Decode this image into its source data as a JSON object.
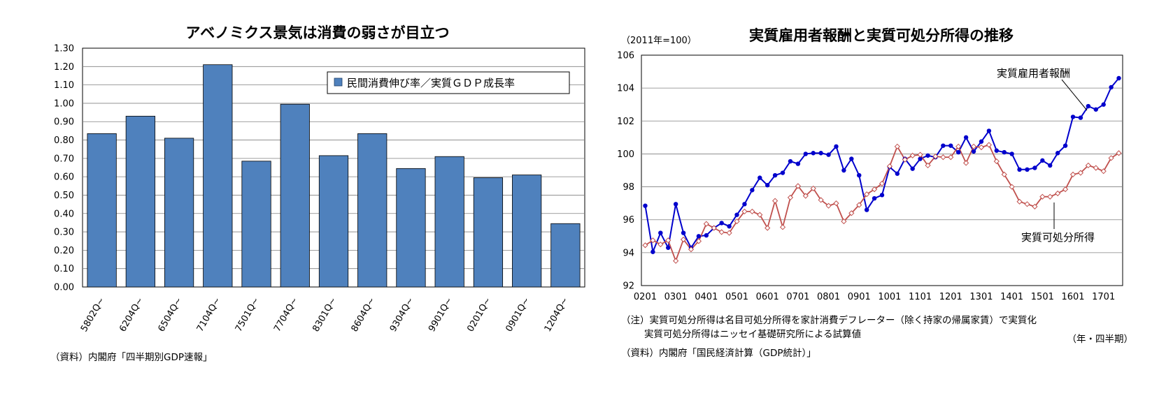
{
  "charts": [
    {
      "type": "bar",
      "title": "アベノミクス景気は消費の弱さが目立つ",
      "legend": "民間消費伸び率／実質ＧＤＰ成長率",
      "categories": [
        "5802Q~",
        "6204Q~",
        "6504Q~",
        "7104Q~",
        "7501Q~",
        "7704Q~",
        "8301Q~",
        "8604Q~",
        "9304Q~",
        "9901Q~",
        "0201Q~",
        "0901Q~",
        "1204Q~"
      ],
      "values": [
        0.835,
        0.93,
        0.81,
        1.21,
        0.685,
        0.995,
        0.715,
        0.835,
        0.645,
        0.71,
        0.595,
        0.61,
        0.345
      ],
      "ylim": [
        0,
        1.3
      ],
      "yticks": [
        "0.00",
        "0.10",
        "0.20",
        "0.30",
        "0.40",
        "0.50",
        "0.60",
        "0.70",
        "0.80",
        "0.90",
        "1.00",
        "1.10",
        "1.20",
        "1.30"
      ],
      "grid": true,
      "legend_position": "top-right",
      "bar_color": "#4f81bd",
      "source": "（資料）内閣府「四半期別GDP速報」"
    },
    {
      "type": "line",
      "title": "実質雇用者報酬と実質可処分所得の推移",
      "unit": "（2011年=100）",
      "xlabel": "（年・四半期）",
      "xticks": [
        "0201",
        "0301",
        "0401",
        "0501",
        "0601",
        "0701",
        "0801",
        "0901",
        "1001",
        "1101",
        "1201",
        "1301",
        "1401",
        "1501",
        "1601",
        "1701"
      ],
      "ylim": [
        92,
        106
      ],
      "yticks": [
        "92",
        "94",
        "96",
        "98",
        "100",
        "102",
        "104",
        "106"
      ],
      "grid": true,
      "series": [
        {
          "name": "実質雇用者報酬",
          "color": "#0000cc",
          "values": [
            96.85,
            94.05,
            95.2,
            94.3,
            96.95,
            95.2,
            94.3,
            95.0,
            95.05,
            95.5,
            95.8,
            95.6,
            96.3,
            96.95,
            97.8,
            98.55,
            98.1,
            98.7,
            98.85,
            99.55,
            99.4,
            100.0,
            100.05,
            100.05,
            99.95,
            100.45,
            99.0,
            99.7,
            98.7,
            96.6,
            97.3,
            97.5,
            99.2,
            98.8,
            99.7,
            99.1,
            99.7,
            99.9,
            99.8,
            100.5,
            100.5,
            100.1,
            101.0,
            100.15,
            100.75,
            101.4,
            100.2,
            100.1,
            100.0,
            99.05,
            99.05,
            99.15,
            99.6,
            99.3,
            100.05,
            100.5,
            102.25,
            102.2,
            102.9,
            102.7,
            103.0,
            104.05,
            104.6
          ]
        },
        {
          "name": "実質可処分所得",
          "color": "#c0504d",
          "values": [
            94.45,
            94.75,
            94.5,
            94.75,
            93.5,
            94.8,
            94.2,
            94.7,
            95.75,
            95.5,
            95.25,
            95.2,
            95.9,
            96.5,
            96.5,
            96.3,
            95.5,
            97.15,
            95.55,
            97.35,
            98.05,
            97.45,
            97.9,
            97.2,
            96.85,
            97.0,
            95.9,
            96.4,
            96.9,
            97.55,
            97.85,
            98.2,
            99.25,
            100.45,
            99.65,
            99.9,
            99.95,
            99.3,
            99.85,
            99.8,
            99.8,
            100.45,
            99.45,
            100.45,
            100.4,
            100.55,
            99.55,
            98.75,
            98.0,
            97.1,
            96.95,
            96.8,
            97.4,
            97.4,
            97.6,
            97.85,
            98.75,
            98.85,
            99.3,
            99.15,
            98.95,
            99.75,
            100.05
          ]
        }
      ],
      "annotations": [
        "実質雇用者報酬",
        "実質可処分所得"
      ],
      "notes": [
        "（注）実質可処分所得は名目可処分所得を家計消費デフレーター（除く持家の帰属家賃）で実質化",
        "実質可処分所得はニッセイ基礎研究所による試算値"
      ],
      "source": "（資料）内閣府「国民経済計算（GDP統計）」"
    }
  ]
}
